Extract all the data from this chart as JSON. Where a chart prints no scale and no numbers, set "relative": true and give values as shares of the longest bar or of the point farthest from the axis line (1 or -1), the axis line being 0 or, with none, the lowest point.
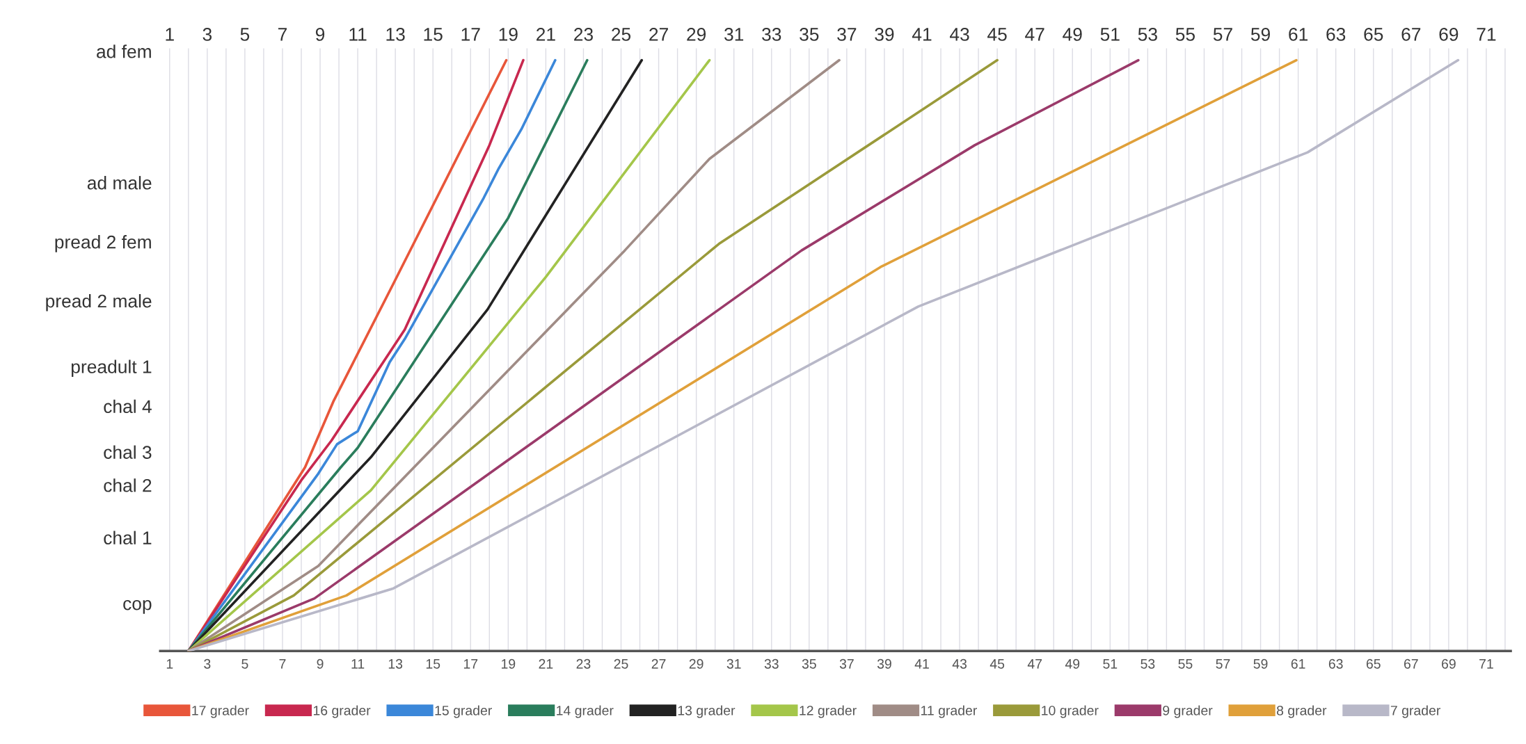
{
  "chart_data": {
    "type": "line",
    "relative": true,
    "xlim": [
      0.5,
      72.3
    ],
    "xticks": [
      1,
      {
        "value": 2,
        "label": null
      },
      3,
      {
        "value": 4,
        "label": null
      },
      5,
      {
        "value": 6,
        "label": null
      },
      7,
      {
        "value": 8,
        "label": null
      },
      9,
      {
        "value": 10,
        "label": null
      },
      11,
      {
        "value": 12,
        "label": null
      },
      13,
      {
        "value": 14,
        "label": null
      },
      15,
      {
        "value": 16,
        "label": null
      },
      17,
      {
        "value": 18,
        "label": null
      },
      19,
      {
        "value": 20,
        "label": null
      },
      21,
      {
        "value": 22,
        "label": null
      },
      23,
      {
        "value": 24,
        "label": null
      },
      25,
      {
        "value": 26,
        "label": null
      },
      27,
      {
        "value": 28,
        "label": null
      },
      29,
      {
        "value": 30,
        "label": null
      },
      31,
      {
        "value": 32,
        "label": null
      },
      33,
      {
        "value": 34,
        "label": null
      },
      35,
      {
        "value": 36,
        "label": null
      },
      37,
      {
        "value": 38,
        "label": null
      },
      39,
      {
        "value": 40,
        "label": null
      },
      41,
      {
        "value": 42,
        "label": null
      },
      43,
      {
        "value": 44,
        "label": null
      },
      45,
      {
        "value": 46,
        "label": null
      },
      47,
      {
        "value": 48,
        "label": null
      },
      49,
      {
        "value": 50,
        "label": null
      },
      51,
      {
        "value": 52,
        "label": null
      },
      53,
      {
        "value": 54,
        "label": null
      },
      55,
      {
        "value": 56,
        "label": null
      },
      57,
      {
        "value": 58,
        "label": null
      },
      59,
      {
        "value": 60,
        "label": null
      },
      61,
      {
        "value": 62,
        "label": null
      },
      63,
      {
        "value": 64,
        "label": null
      },
      65,
      {
        "value": 66,
        "label": null
      },
      67,
      {
        "value": 68,
        "label": null
      },
      69,
      {
        "value": 70,
        "label": null
      },
      71,
      {
        "value": 72,
        "label": null
      }
    ],
    "x2lim": [
      0.5,
      72.3
    ],
    "x2ticks": [
      1,
      3,
      5,
      7,
      9,
      11,
      13,
      15,
      17,
      19,
      21,
      23,
      25,
      27,
      29,
      31,
      33,
      35,
      37,
      39,
      41,
      43,
      45,
      47,
      49,
      51,
      53,
      55,
      57,
      59,
      61,
      63,
      65,
      67,
      69,
      71
    ],
    "annotations": [
      "cop",
      "chal 1",
      "chal 2",
      "chal 3",
      "chal 4",
      "preadult 1",
      "pread 2 male",
      "pread 2 fem",
      "ad male",
      "ad fem"
    ],
    "grid": "x",
    "legend": "bottom",
    "marker": "none",
    "line_style": "solid",
    "series": [
      {
        "name": "17 grader",
        "color": "#e8563a",
        "x": [
          2,
          8.2,
          9.7,
          12.9,
          18.9
        ],
        "values": [
          0,
          0.311,
          0.422,
          0.622,
          1
        ]
      },
      {
        "name": "16 grader",
        "color": "#c8284f",
        "x": [
          2,
          8.0,
          9.6,
          13.5,
          18.0,
          19.8
        ],
        "values": [
          0,
          0.289,
          0.356,
          0.544,
          0.856,
          1
        ]
      },
      {
        "name": "15 grader",
        "color": "#3b87d9",
        "x": [
          2,
          8.9,
          9.9,
          11.0,
          12.7,
          13.5,
          17.7,
          18.5,
          19.7,
          21.5
        ],
        "values": [
          0,
          0.3,
          0.35,
          0.372,
          0.489,
          0.528,
          0.767,
          0.817,
          0.883,
          1
        ]
      },
      {
        "name": "14 grader",
        "color": "#2a7d5c",
        "x": [
          2,
          10.1,
          11.0,
          19.0,
          23.2
        ],
        "values": [
          0,
          0.311,
          0.344,
          0.733,
          1
        ]
      },
      {
        "name": "13 grader",
        "color": "#222222",
        "x": [
          2,
          11.7,
          17.9,
          26.1
        ],
        "values": [
          0,
          0.328,
          0.578,
          1
        ]
      },
      {
        "name": "12 grader",
        "color": "#a4c64a",
        "x": [
          2,
          11.7,
          21.0,
          29.7
        ],
        "values": [
          0,
          0.272,
          0.633,
          1
        ]
      },
      {
        "name": "11 grader",
        "color": "#a08c86",
        "x": [
          2,
          8.9,
          25.2,
          29.7,
          36.6
        ],
        "values": [
          0,
          0.144,
          0.678,
          0.833,
          1
        ]
      },
      {
        "name": "10 grader",
        "color": "#9a9a3a",
        "x": [
          2,
          7.6,
          30.2,
          45.0
        ],
        "values": [
          0,
          0.094,
          0.689,
          1
        ]
      },
      {
        "name": "9 grader",
        "color": "#9b3a6a",
        "x": [
          2,
          8.7,
          34.6,
          43.8,
          52.5
        ],
        "values": [
          0,
          0.089,
          0.678,
          0.856,
          1
        ]
      },
      {
        "name": "8 grader",
        "color": "#e0a03a",
        "x": [
          2,
          10.4,
          38.8,
          60.9
        ],
        "values": [
          0,
          0.094,
          0.65,
          1
        ]
      },
      {
        "name": "7 grader",
        "color": "#b8b8c8",
        "x": [
          2,
          12.9,
          40.8,
          61.5,
          69.5
        ],
        "values": [
          0,
          0.106,
          0.583,
          0.844,
          1
        ]
      }
    ]
  }
}
